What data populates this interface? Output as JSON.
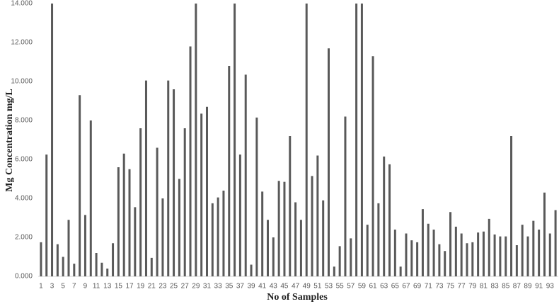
{
  "chart_data": {
    "type": "bar",
    "x_label": "No of Samples",
    "y_label": "Mg Concentration mg/L",
    "categories": [
      "1",
      null,
      "3",
      null,
      "5",
      null,
      "7",
      null,
      "9",
      null,
      "11",
      null,
      "13",
      null,
      "15",
      null,
      "17",
      null,
      "19",
      null,
      "21",
      null,
      "23",
      null,
      "25",
      null,
      "27",
      null,
      "29",
      null,
      "31",
      null,
      "33",
      null,
      "35",
      null,
      "37",
      null,
      "39",
      null,
      "41",
      null,
      "43",
      null,
      "45",
      null,
      "47",
      null,
      "49",
      null,
      "51",
      null,
      "53",
      null,
      "55",
      null,
      "57",
      null,
      "59",
      null,
      "61",
      null,
      "63",
      null,
      "65",
      null,
      "67",
      null,
      "69",
      null,
      "71",
      null,
      "73",
      null,
      "75",
      null,
      "77",
      null,
      "79",
      null,
      "81",
      null,
      "83",
      null,
      "85",
      null,
      "87",
      null,
      "89",
      null,
      "91",
      null,
      "93",
      null
    ],
    "values": [
      1.75,
      6.25,
      14,
      1.65,
      1.0,
      2.9,
      0.65,
      9.3,
      3.15,
      8.0,
      1.2,
      0.7,
      0.4,
      1.7,
      5.6,
      6.3,
      5.5,
      3.55,
      7.6,
      10.05,
      0.95,
      6.6,
      4.0,
      10.05,
      9.6,
      5.0,
      7.6,
      11.8,
      14,
      8.35,
      8.7,
      3.75,
      4.05,
      4.4,
      10.8,
      14,
      6.25,
      10.35,
      0.6,
      8.15,
      4.35,
      2.9,
      2.0,
      4.9,
      4.85,
      7.2,
      3.8,
      2.9,
      14,
      5.15,
      6.2,
      3.9,
      11.7,
      0.5,
      1.55,
      8.2,
      1.95,
      14,
      14,
      2.65,
      11.3,
      3.75,
      6.15,
      5.75,
      2.4,
      0.5,
      2.2,
      1.85,
      1.75,
      3.45,
      2.7,
      2.4,
      1.65,
      1.3,
      3.3,
      2.55,
      2.2,
      1.7,
      1.75,
      2.25,
      2.3,
      2.95,
      2.15,
      2.05,
      2.05,
      7.2,
      1.6,
      2.65,
      2.05,
      2.85,
      2.4,
      4.3,
      2.2,
      3.4
    ],
    "color": "#595959",
    "ylim": [
      0,
      14
    ],
    "yticks": [
      {
        "value": 0,
        "label": "0.000"
      },
      {
        "value": 2,
        "label": "2.000"
      },
      {
        "value": 4,
        "label": "4.000"
      },
      {
        "value": 6,
        "label": "6.000"
      },
      {
        "value": 8,
        "label": "8.000"
      },
      {
        "value": 10,
        "label": "10.000"
      },
      {
        "value": 12,
        "label": "12.000"
      },
      {
        "value": 14,
        "label": "14.000"
      }
    ],
    "grid": false
  }
}
